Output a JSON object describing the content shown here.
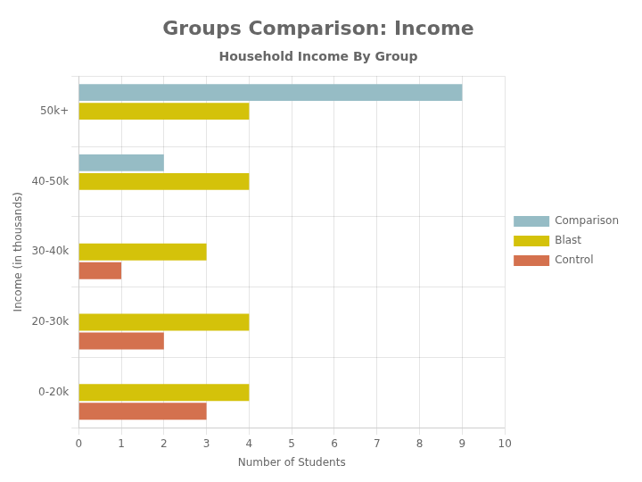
{
  "chart_data": {
    "type": "bar",
    "orientation": "horizontal",
    "title": "Groups Comparison: Income",
    "subtitle": "Household Income By Group",
    "categories": [
      "50k+",
      "40-50k",
      "30-40k",
      "20-30k",
      "0-20k"
    ],
    "series": [
      {
        "name": "Comparison",
        "color": "#96bcc5",
        "values": [
          9,
          2,
          0,
          0,
          0
        ]
      },
      {
        "name": "Blast",
        "color": "#d4c20a",
        "values": [
          4,
          4,
          3,
          4,
          4
        ]
      },
      {
        "name": "Control",
        "color": "#d4714e",
        "values": [
          0,
          0,
          1,
          2,
          3
        ]
      }
    ],
    "xlabel": "Number of Students",
    "ylabel": "Income (in thousands)",
    "xlim": [
      0,
      10
    ],
    "xticks": [
      0,
      1,
      2,
      3,
      4,
      5,
      6,
      7,
      8,
      9,
      10
    ],
    "grid": true,
    "legend": "right"
  }
}
